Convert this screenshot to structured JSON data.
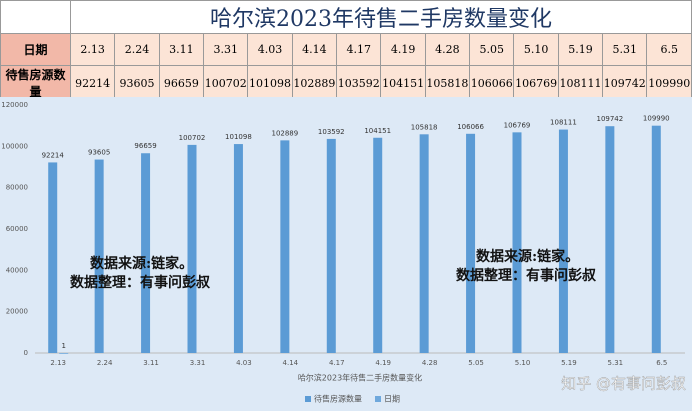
{
  "title": "哈尔滨2023年待售二手房数量变化",
  "table": {
    "row_headers": [
      "日期",
      "待售房源数量"
    ],
    "columns": [
      "2.13",
      "2.24",
      "3.11",
      "3.31",
      "4.03",
      "4.14",
      "4.17",
      "4.19",
      "4.28",
      "5.05",
      "5.10",
      "5.19",
      "5.31",
      "6.5"
    ],
    "values": [
      92214,
      93605,
      96659,
      100702,
      101098,
      102889,
      103592,
      104151,
      105818,
      106066,
      106769,
      108111,
      109742,
      109990
    ]
  },
  "chart_data": {
    "type": "bar",
    "x_label": "哈尔滨2023年待售二手房数量变化",
    "categories": [
      "2.13",
      "2.24",
      "3.11",
      "3.31",
      "4.03",
      "4.14",
      "4.17",
      "4.19",
      "4.28",
      "5.05",
      "5.10",
      "5.19",
      "5.31",
      "6.5"
    ],
    "series": [
      {
        "name": "待售房源数量",
        "color": "#5b9bd5",
        "values": [
          92214,
          93605,
          96659,
          100702,
          101098,
          102889,
          103592,
          104151,
          105818,
          106066,
          106769,
          108111,
          109742,
          109990
        ]
      },
      {
        "name": "日期",
        "color": "#6fa8dc",
        "values": [
          1,
          null,
          null,
          null,
          null,
          null,
          null,
          null,
          null,
          null,
          null,
          null,
          null,
          null
        ]
      }
    ],
    "ylim": [
      0,
      120000
    ],
    "yticks": [
      0,
      20000,
      40000,
      60000,
      80000,
      100000,
      120000
    ],
    "grid": false,
    "legend": "bottom",
    "annotations": [
      "数据来源:链家。",
      "数据整理：有事问彭叔",
      "数据来源:链家。",
      "数据整理：有事问彭叔"
    ]
  },
  "watermark": "知乎 @有事问彭叔"
}
